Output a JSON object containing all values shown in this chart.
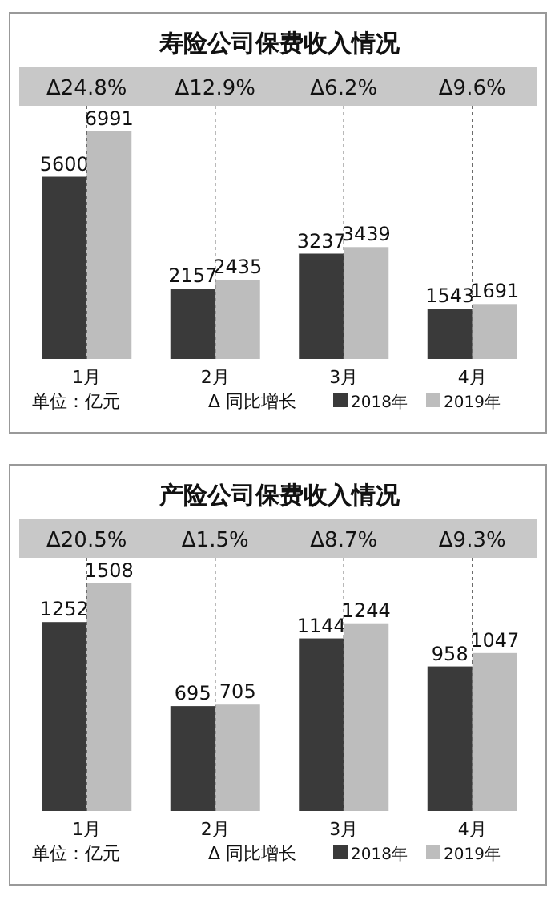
{
  "chart_data": [
    {
      "type": "bar",
      "title": "寿险公司保费收入情况",
      "categories": [
        "1月",
        "2月",
        "3月",
        "4月"
      ],
      "series": [
        {
          "name": "2018年",
          "color": "#3a3a3a",
          "values": [
            5600,
            2157,
            3237,
            1543
          ]
        },
        {
          "name": "2019年",
          "color": "#bdbdbd",
          "values": [
            6991,
            2435,
            3439,
            1691
          ]
        }
      ],
      "data_labels": true,
      "legend": "bottom",
      "grid": "x",
      "annotations": [
        "Δ24.8%",
        "Δ12.9%",
        "Δ6.2%",
        "Δ9.6%",
        "单位：亿元",
        "Δ 同比增长"
      ]
    },
    {
      "type": "bar",
      "title": "产险公司保费收入情况",
      "categories": [
        "1月",
        "2月",
        "3月",
        "4月"
      ],
      "series": [
        {
          "name": "2018年",
          "color": "#3a3a3a",
          "values": [
            1252,
            695,
            1144,
            958
          ]
        },
        {
          "name": "2019年",
          "color": "#bdbdbd",
          "values": [
            1508,
            705,
            1244,
            1047
          ]
        }
      ],
      "data_labels": true,
      "legend": "bottom",
      "grid": "x",
      "annotations": [
        "Δ20.5%",
        "Δ1.5%",
        "Δ8.7%",
        "Δ9.3%",
        "单位：亿元",
        "Δ 同比增长"
      ]
    }
  ]
}
